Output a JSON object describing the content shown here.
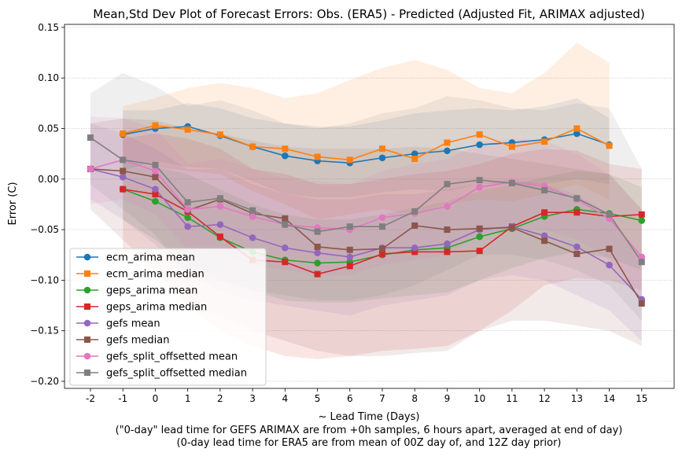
{
  "chart_data": {
    "type": "line",
    "title": "Mean,Std Dev Plot of Forecast Errors: Obs. (ERA5) - Predicted (Adjusted Fit, ARIMAX adjusted)",
    "xlabel": "~ Lead Time (Days)",
    "xlabel_notes": [
      "(\"0-day\" lead time for GEFS ARIMAX are from +0h samples, 6 hours apart, averaged at end of day)",
      "(0-day lead time for ERA5 are from mean of 00Z day of, and 12Z day prior)"
    ],
    "ylabel": "Error (C)",
    "xlim": [
      -2.8,
      16.0
    ],
    "ylim": [
      -0.207,
      0.153
    ],
    "x_ticks": [
      -2,
      -1,
      0,
      1,
      2,
      3,
      4,
      5,
      6,
      7,
      8,
      9,
      10,
      11,
      12,
      13,
      14,
      15
    ],
    "x_tick_labels": [
      "-2",
      "-1",
      "0",
      "1",
      "2",
      "3",
      "4",
      "5",
      "6",
      "7",
      "8",
      "9",
      "10",
      "11",
      "12",
      "13",
      "14",
      "15"
    ],
    "y_ticks": [
      -0.2,
      -0.15,
      -0.1,
      -0.05,
      0.0,
      0.05,
      0.1,
      0.15
    ],
    "y_tick_labels": [
      "−0.20",
      "−0.15",
      "−0.10",
      "−0.05",
      "0.00",
      "0.05",
      "0.10",
      "0.15"
    ],
    "grid": true,
    "legend_position": "lower-left",
    "series": [
      {
        "name": "ecm_arima mean",
        "color": "#1f77b4",
        "marker": "circle",
        "x": [
          -1,
          0,
          1,
          2,
          3,
          4,
          5,
          6,
          7,
          8,
          9,
          10,
          11,
          12,
          13,
          14
        ],
        "values": [
          0.044,
          0.05,
          0.052,
          0.043,
          0.032,
          0.023,
          0.018,
          0.016,
          0.021,
          0.025,
          0.028,
          0.034,
          0.036,
          0.039,
          0.045,
          0.034
        ],
        "band_lower": [
          0.008,
          0.018,
          0.012,
          0.01,
          -0.002,
          -0.015,
          -0.018,
          -0.018,
          -0.013,
          -0.01,
          -0.012,
          -0.005,
          -0.005,
          -0.005,
          0.0,
          -0.005
        ],
        "band_upper": [
          0.068,
          0.068,
          0.075,
          0.07,
          0.06,
          0.055,
          0.052,
          0.052,
          0.058,
          0.065,
          0.068,
          0.07,
          0.068,
          0.072,
          0.08,
          0.06
        ]
      },
      {
        "name": "ecm_arima median",
        "color": "#ff7f0e",
        "marker": "square",
        "x": [
          -1,
          0,
          1,
          2,
          3,
          4,
          5,
          6,
          7,
          8,
          9,
          10,
          11,
          12,
          13,
          14
        ],
        "values": [
          0.045,
          0.053,
          0.049,
          0.044,
          0.032,
          0.03,
          0.022,
          0.019,
          0.03,
          0.02,
          0.036,
          0.044,
          0.032,
          0.037,
          0.05,
          0.033
        ],
        "band_lower": [
          0.02,
          0.012,
          0.008,
          0.005,
          -0.012,
          -0.025,
          -0.04,
          -0.035,
          -0.03,
          -0.035,
          -0.025,
          -0.02,
          -0.022,
          -0.015,
          -0.005,
          -0.02
        ],
        "band_upper": [
          0.072,
          0.08,
          0.09,
          0.095,
          0.09,
          0.08,
          0.085,
          0.098,
          0.11,
          0.118,
          0.108,
          0.09,
          0.085,
          0.105,
          0.135,
          0.115
        ]
      },
      {
        "name": "geps_arima mean",
        "color": "#2ca02c",
        "marker": "circle",
        "x": [
          -1,
          0,
          1,
          2,
          3,
          4,
          5,
          6,
          7,
          8,
          9,
          10,
          11,
          12,
          13,
          14,
          15
        ],
        "values": [
          -0.01,
          -0.022,
          -0.038,
          -0.058,
          -0.072,
          -0.08,
          -0.083,
          -0.082,
          -0.075,
          -0.07,
          -0.068,
          -0.057,
          -0.049,
          -0.037,
          -0.03,
          -0.034,
          -0.041
        ],
        "band_lower": [
          -0.04,
          -0.06,
          -0.085,
          -0.1,
          -0.11,
          -0.12,
          -0.122,
          -0.122,
          -0.118,
          -0.115,
          -0.112,
          -0.1,
          -0.088,
          -0.078,
          -0.072,
          -0.078,
          -0.09
        ],
        "band_upper": [
          0.018,
          0.012,
          0.005,
          -0.01,
          -0.025,
          -0.035,
          -0.04,
          -0.04,
          -0.035,
          -0.028,
          -0.022,
          -0.012,
          -0.005,
          0.002,
          0.008,
          0.005,
          -0.008
        ]
      },
      {
        "name": "geps_arima median",
        "color": "#d62728",
        "marker": "square",
        "x": [
          -1,
          0,
          1,
          2,
          3,
          4,
          5,
          6,
          7,
          8,
          9,
          10,
          11,
          12,
          13,
          14,
          15
        ],
        "values": [
          -0.01,
          -0.015,
          -0.032,
          -0.057,
          -0.08,
          -0.082,
          -0.094,
          -0.086,
          -0.074,
          -0.072,
          -0.072,
          -0.071,
          -0.047,
          -0.033,
          -0.033,
          -0.037,
          -0.035
        ],
        "band_lower": [
          -0.07,
          -0.09,
          -0.125,
          -0.15,
          -0.165,
          -0.175,
          -0.178,
          -0.175,
          -0.17,
          -0.168,
          -0.165,
          -0.15,
          -0.13,
          -0.105,
          -0.098,
          -0.1,
          -0.11
        ],
        "band_upper": [
          0.04,
          0.045,
          0.04,
          0.03,
          0.01,
          0.005,
          -0.005,
          -0.005,
          0.0,
          0.005,
          0.008,
          0.015,
          0.025,
          0.03,
          0.028,
          0.015,
          0.01
        ]
      },
      {
        "name": "gefs mean",
        "color": "#9467bd",
        "marker": "circle",
        "x": [
          -2,
          -1,
          0,
          1,
          2,
          3,
          4,
          5,
          6,
          7,
          8,
          9,
          10,
          11,
          12,
          13,
          14,
          15
        ],
        "values": [
          0.01,
          0.002,
          -0.01,
          -0.047,
          -0.045,
          -0.058,
          -0.068,
          -0.073,
          -0.077,
          -0.068,
          -0.068,
          -0.064,
          -0.05,
          -0.047,
          -0.056,
          -0.067,
          -0.085,
          -0.119
        ],
        "band_lower": [
          -0.02,
          -0.04,
          -0.065,
          -0.095,
          -0.11,
          -0.12,
          -0.125,
          -0.13,
          -0.135,
          -0.125,
          -0.12,
          -0.115,
          -0.1,
          -0.095,
          -0.1,
          -0.115,
          -0.13,
          -0.16
        ],
        "band_upper": [
          0.055,
          0.045,
          0.03,
          0.01,
          0.01,
          -0.005,
          -0.015,
          -0.02,
          -0.02,
          -0.015,
          -0.015,
          -0.01,
          -0.005,
          0.0,
          -0.005,
          -0.015,
          -0.035,
          -0.08
        ]
      },
      {
        "name": "gefs median",
        "color": "#8c564b",
        "marker": "square",
        "x": [
          -2,
          -1,
          0,
          1,
          2,
          3,
          4,
          5,
          6,
          7,
          8,
          9,
          10,
          11,
          12,
          13,
          14,
          15
        ],
        "values": [
          0.01,
          0.008,
          0.002,
          -0.031,
          -0.02,
          -0.034,
          -0.039,
          -0.067,
          -0.07,
          -0.069,
          -0.046,
          -0.05,
          -0.049,
          -0.048,
          -0.061,
          -0.074,
          -0.069,
          -0.123
        ],
        "band_lower": [
          -0.03,
          -0.06,
          -0.09,
          -0.125,
          -0.135,
          -0.15,
          -0.16,
          -0.17,
          -0.175,
          -0.175,
          -0.172,
          -0.17,
          -0.15,
          -0.14,
          -0.14,
          -0.145,
          -0.15,
          -0.165
        ],
        "band_upper": [
          0.055,
          0.06,
          0.058,
          0.05,
          0.045,
          0.038,
          0.032,
          0.03,
          0.03,
          0.03,
          0.032,
          0.03,
          0.025,
          0.02,
          0.015,
          0.01,
          0.005,
          -0.03
        ]
      },
      {
        "name": "gefs_split_offsetted mean",
        "color": "#e377c2",
        "marker": "circle",
        "x": [
          -2,
          -1,
          0,
          1,
          2,
          3,
          4,
          5,
          6,
          7,
          8,
          9,
          10,
          11,
          12,
          13,
          14,
          15
        ],
        "values": [
          0.01,
          0.019,
          0.008,
          -0.03,
          -0.027,
          -0.037,
          -0.045,
          -0.048,
          -0.05,
          -0.038,
          -0.034,
          -0.027,
          -0.008,
          -0.003,
          -0.007,
          -0.02,
          -0.039,
          -0.077
        ],
        "band_lower": [
          -0.025,
          -0.02,
          -0.035,
          -0.07,
          -0.075,
          -0.085,
          -0.09,
          -0.095,
          -0.095,
          -0.085,
          -0.08,
          -0.075,
          -0.055,
          -0.048,
          -0.05,
          -0.06,
          -0.08,
          -0.12
        ],
        "band_upper": [
          0.062,
          0.06,
          0.05,
          0.015,
          0.02,
          0.01,
          0.0,
          -0.002,
          -0.005,
          0.008,
          0.015,
          0.02,
          0.035,
          0.04,
          0.038,
          0.025,
          0.005,
          -0.03
        ]
      },
      {
        "name": "gefs_split_offsetted median",
        "color": "#7f7f7f",
        "marker": "square",
        "x": [
          -2,
          -1,
          0,
          1,
          2,
          3,
          4,
          5,
          6,
          7,
          8,
          9,
          10,
          11,
          12,
          13,
          14,
          15
        ],
        "values": [
          0.041,
          0.019,
          0.014,
          -0.023,
          -0.019,
          -0.031,
          -0.045,
          -0.052,
          -0.047,
          -0.047,
          -0.032,
          -0.005,
          -0.001,
          -0.004,
          -0.011,
          -0.019,
          -0.035,
          -0.082
        ],
        "band_lower": [
          -0.005,
          -0.03,
          -0.055,
          -0.095,
          -0.1,
          -0.11,
          -0.115,
          -0.12,
          -0.12,
          -0.115,
          -0.105,
          -0.09,
          -0.075,
          -0.075,
          -0.08,
          -0.09,
          -0.105,
          -0.14
        ],
        "band_upper": [
          0.085,
          0.105,
          0.092,
          0.072,
          0.078,
          0.068,
          0.055,
          0.05,
          0.055,
          0.065,
          0.07,
          0.082,
          0.078,
          0.07,
          0.068,
          0.075,
          0.07,
          0.01
        ]
      }
    ]
  }
}
